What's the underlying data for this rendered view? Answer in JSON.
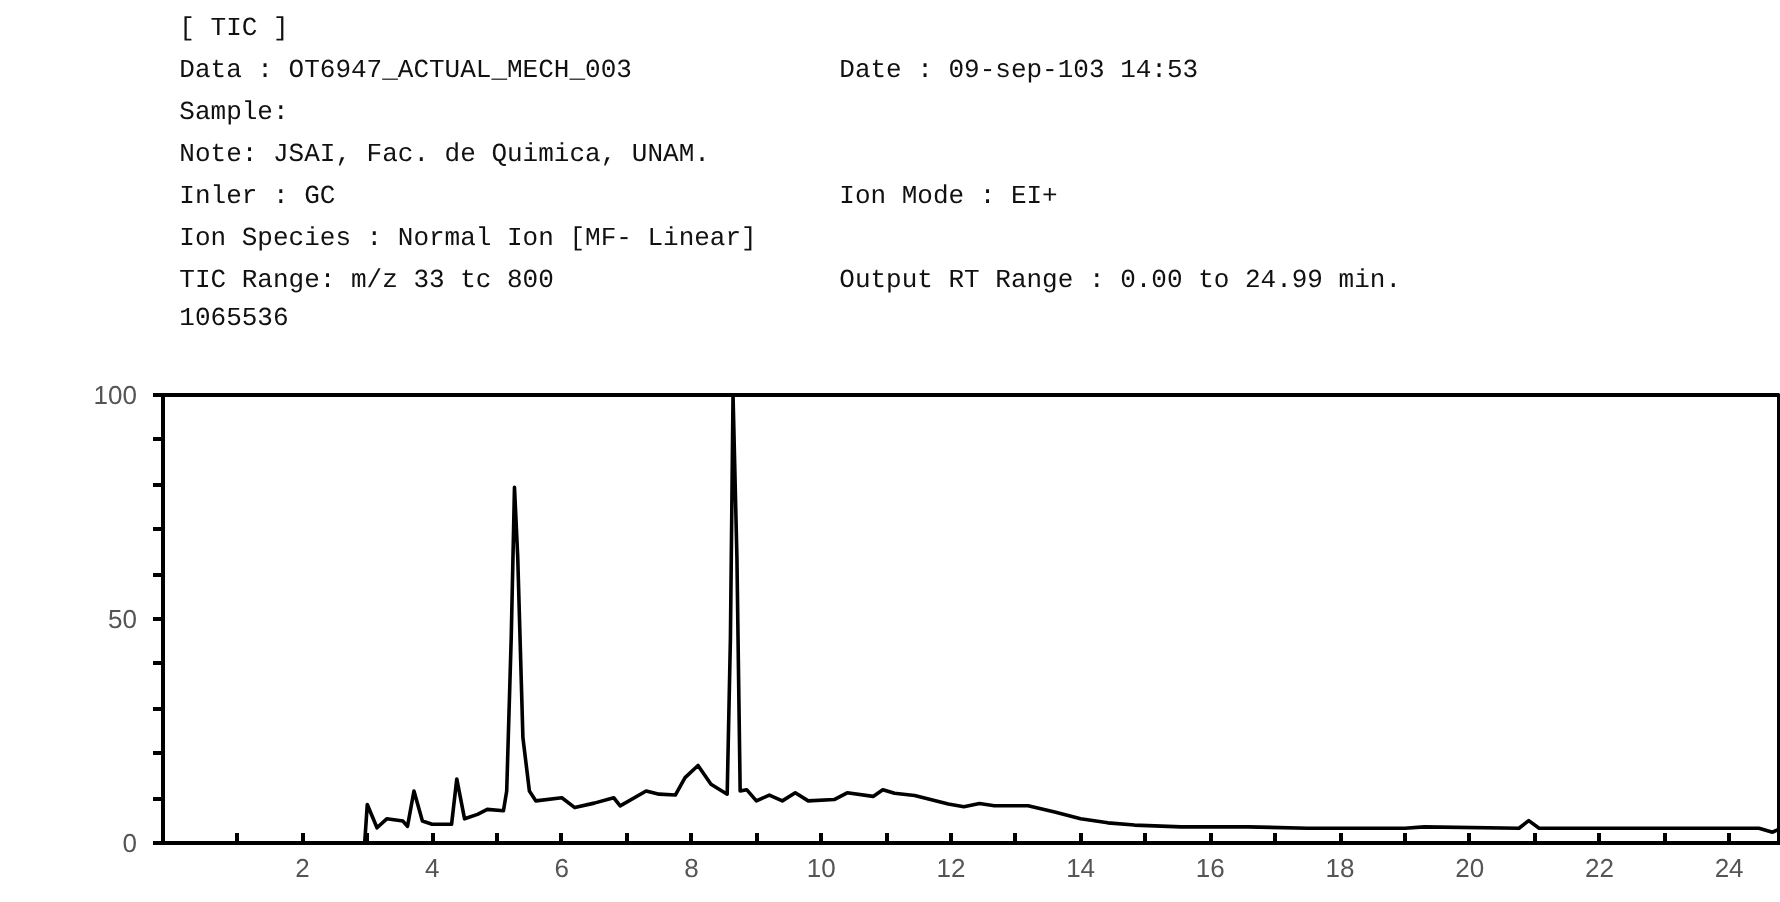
{
  "chart_data": {
    "type": "line",
    "title": "[ TIC ]",
    "annotations": [
      "Data : OT6947_ACTUAL_MECH_003",
      "Date : 09-sep-103 14:53",
      "Sample:",
      "Note: JSAI, Fac. de Quimica, UNAM.",
      "Inler : GC",
      "Ion Mode : EI+",
      "Ion Species : Normal Ion [MF- Linear]",
      "TIC Range: m/z 33 tc 800",
      "Output RT Range : 0.00 to 24.99 min.",
      "1065536"
    ],
    "series": [
      {
        "color": "#000000",
        "x": [
          2.96,
          3.0,
          3.15,
          3.3,
          3.55,
          3.62,
          3.72,
          3.85,
          4.0,
          4.3,
          4.38,
          4.5,
          4.7,
          4.85,
          5.1,
          5.15,
          5.22,
          5.27,
          5.32,
          5.4,
          5.5,
          5.6,
          6.0,
          6.2,
          6.5,
          6.8,
          6.9,
          7.3,
          7.5,
          7.75,
          7.9,
          8.1,
          8.3,
          8.55,
          8.6,
          8.64,
          8.7,
          8.75,
          8.85,
          9.0,
          9.2,
          9.4,
          9.6,
          9.8,
          10.2,
          10.4,
          10.8,
          10.95,
          11.13,
          11.44,
          11.96,
          12.2,
          12.44,
          12.67,
          13.19,
          13.6,
          14.0,
          14.42,
          14.83,
          15.55,
          16.58,
          17.5,
          19.0,
          19.3,
          20.76,
          20.91,
          21.07,
          24.46,
          24.67,
          24.8
        ],
        "values": [
          0,
          8.6,
          3.4,
          5.4,
          4.9,
          3.7,
          11.6,
          4.9,
          4.2,
          4.2,
          14.3,
          5.4,
          6.4,
          7.5,
          7.2,
          11.6,
          46,
          79.4,
          63.8,
          23.5,
          11.6,
          9.4,
          10.1,
          7.9,
          8.9,
          10.1,
          8.3,
          11.6,
          10.9,
          10.7,
          14.6,
          17.3,
          13.1,
          10.9,
          46,
          100,
          63.8,
          11.6,
          11.9,
          9.4,
          10.7,
          9.4,
          11.2,
          9.4,
          9.7,
          11.2,
          10.4,
          11.9,
          11.1,
          10.6,
          8.7,
          8.1,
          8.8,
          8.3,
          8.3,
          6.9,
          5.4,
          4.5,
          4.0,
          3.6,
          3.6,
          3.3,
          3.3,
          3.6,
          3.3,
          5.0,
          3.3,
          3.3,
          2.4,
          3.3
        ]
      }
    ],
    "xlim": [
      -0.15,
      24.8
    ],
    "ylim": [
      0,
      100
    ],
    "xticks": [
      {
        "value": 1,
        "label": null
      },
      2,
      {
        "value": 3,
        "label": null
      },
      4,
      {
        "value": 5,
        "label": null
      },
      6,
      {
        "value": 7,
        "label": null
      },
      8,
      {
        "value": 9,
        "label": null
      },
      10,
      {
        "value": 11,
        "label": null
      },
      12,
      {
        "value": 13,
        "label": null
      },
      14,
      {
        "value": 15,
        "label": null
      },
      16,
      {
        "value": 17,
        "label": null
      },
      18,
      {
        "value": 19,
        "label": null
      },
      20,
      {
        "value": 21,
        "label": null
      },
      22,
      {
        "value": 23,
        "label": null
      },
      24
    ],
    "yticks": [
      0,
      {
        "value": 10,
        "label": null
      },
      {
        "value": 20,
        "label": null
      },
      {
        "value": 30,
        "label": null
      },
      {
        "value": 40,
        "label": null
      },
      50,
      {
        "value": 60,
        "label": null
      },
      {
        "value": 70,
        "label": null
      },
      {
        "value": 80,
        "label": null
      },
      {
        "value": 90,
        "label": null
      },
      100
    ],
    "grid": false,
    "marker": "none",
    "line_style": "solid"
  }
}
